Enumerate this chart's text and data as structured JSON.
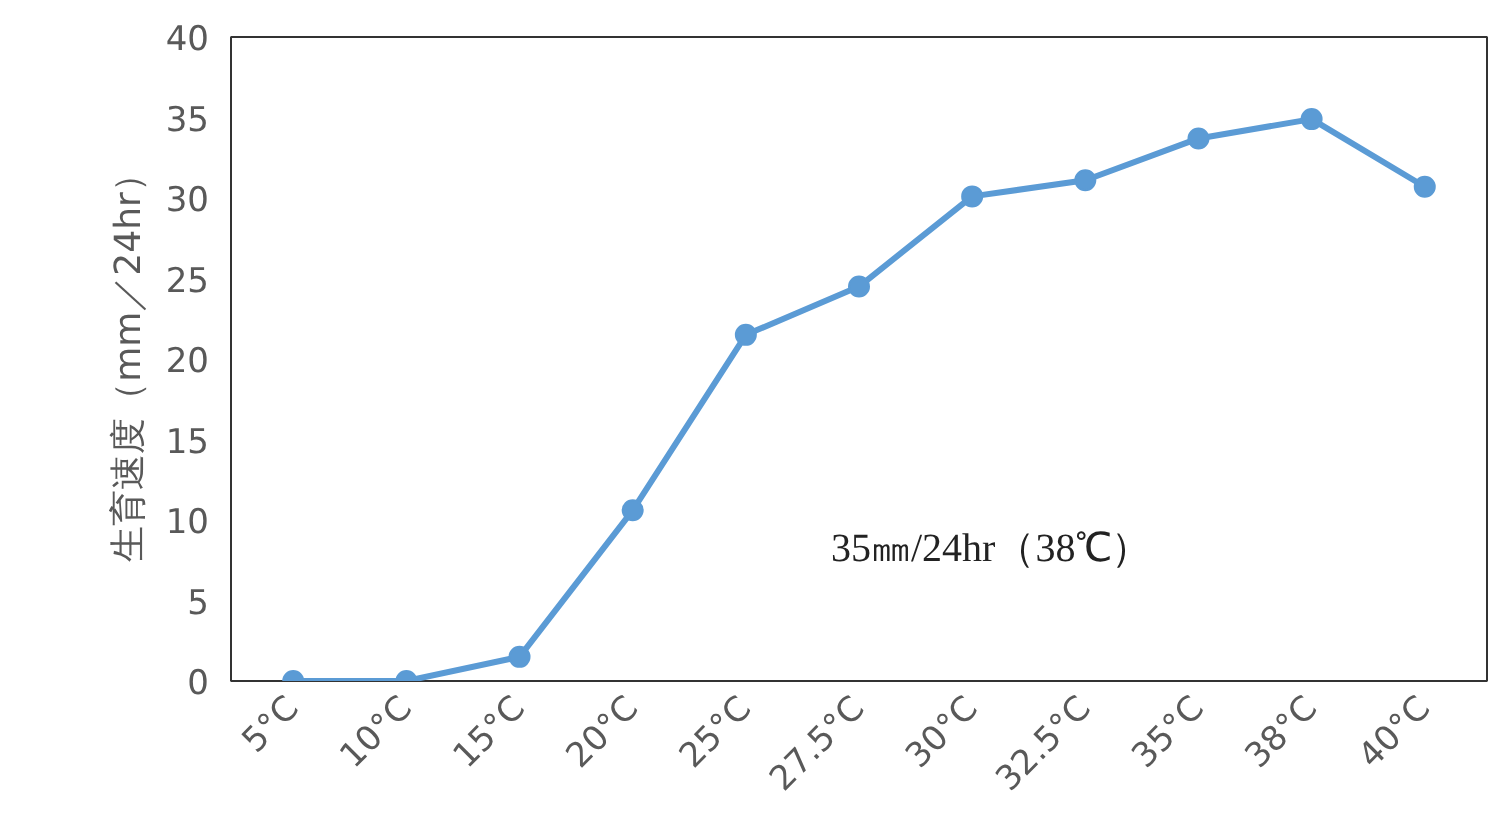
{
  "chart_data": {
    "type": "line",
    "ylabel": "生育速度（mm／24hr）",
    "categories": [
      "5°C",
      "10°C",
      "15°C",
      "20°C",
      "25°C",
      "27.5°C",
      "30°C",
      "32.5°C",
      "35°C",
      "38°C",
      "40°C"
    ],
    "series": [
      {
        "color": "#5b9bd5",
        "values": [
          0,
          0,
          1.5,
          10.6,
          21.5,
          24.5,
          30.1,
          31.1,
          33.7,
          34.9,
          30.7
        ]
      }
    ],
    "ylim": [
      0,
      40
    ],
    "yticks": [
      0,
      5,
      10,
      15,
      20,
      25,
      30,
      35,
      40
    ],
    "marker": "circle",
    "line_style": "solid",
    "annotations": [
      "35㎜/24hr（38℃）"
    ]
  }
}
